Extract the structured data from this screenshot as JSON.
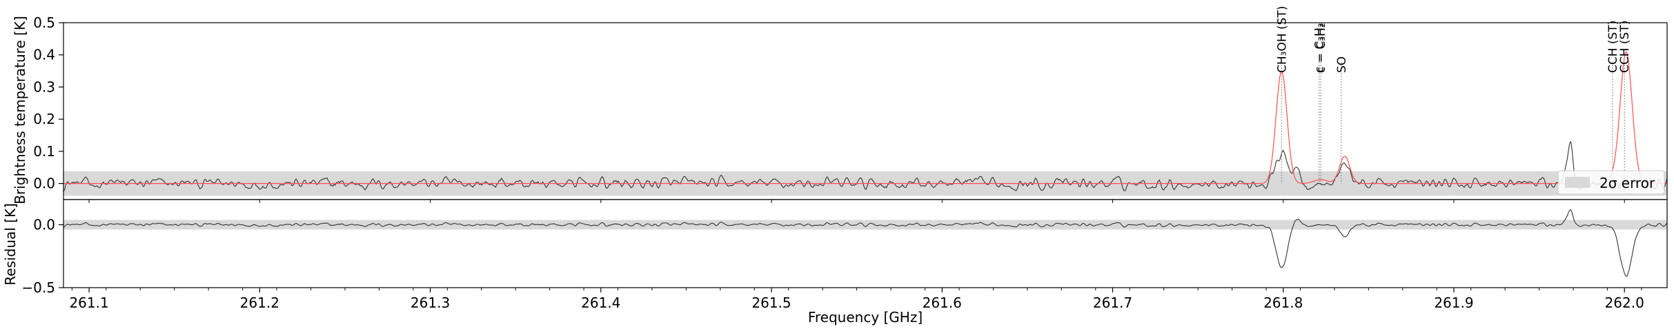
{
  "chart_data": {
    "type": "line",
    "xlabel": "Frequency [GHz]",
    "xlim": [
      261.085,
      262.025
    ],
    "x_ticks": [
      "261.1",
      "261.2",
      "261.3",
      "261.4",
      "261.5",
      "261.6",
      "261.7",
      "261.8",
      "261.9",
      "262.0"
    ],
    "panels": [
      {
        "name": "spectrum",
        "ylabel": "Brightness temperature [K]",
        "ylim": [
          -0.05,
          0.5
        ],
        "y_ticks": [
          "0.0",
          "0.1",
          "0.2",
          "0.3",
          "0.4",
          "0.5"
        ],
        "error_band": [
          -0.038,
          0.038
        ],
        "noise_amplitude": 0.015,
        "series": [
          {
            "role": "observed",
            "color": "#333333",
            "features": [
              {
                "center": 261.799,
                "width": 0.0032,
                "amp": 0.13
              },
              {
                "center": 261.836,
                "width": 0.0028,
                "amp": 0.07
              },
              {
                "center": 261.968,
                "width": 0.0018,
                "amp": 0.13
              },
              {
                "center": 261.808,
                "width": 0.0022,
                "amp": 0.05
              },
              {
                "center": 261.798,
                "width": 0.0015,
                "amp": -0.06
              }
            ]
          },
          {
            "role": "model",
            "color": "#ff4d4d",
            "features": [
              {
                "center": 261.799,
                "width": 0.0032,
                "amp": 0.35
              },
              {
                "center": 261.836,
                "width": 0.003,
                "amp": 0.085
              },
              {
                "center": 261.822,
                "width": 0.004,
                "amp": 0.012
              },
              {
                "center": 262.001,
                "width": 0.0035,
                "amp": 0.41
              },
              {
                "center": 261.993,
                "width": 0.0025,
                "amp": 0.01
              }
            ]
          }
        ]
      },
      {
        "name": "residual",
        "ylabel": "Residual [K]",
        "ylim": [
          -0.5,
          0.2
        ],
        "y_ticks": [
          "−0.5",
          "0.0"
        ],
        "error_band": [
          -0.038,
          0.038
        ],
        "noise_amplitude": 0.012,
        "series": [
          {
            "role": "residual",
            "color": "#333333",
            "features": [
              {
                "center": 261.799,
                "width": 0.0032,
                "amp": -0.35
              },
              {
                "center": 262.001,
                "width": 0.0035,
                "amp": -0.41
              },
              {
                "center": 261.836,
                "width": 0.0028,
                "amp": -0.09
              },
              {
                "center": 261.968,
                "width": 0.0018,
                "amp": 0.12
              },
              {
                "center": 261.808,
                "width": 0.0025,
                "amp": 0.05
              }
            ]
          }
        ]
      }
    ],
    "line_identifications": [
      {
        "freq": 261.799,
        "label": "CH₃OH (ST)"
      },
      {
        "freq": 261.821,
        "label": "c − C₃H₂"
      },
      {
        "freq": 261.822,
        "label": "c − C₃H₂"
      },
      {
        "freq": 261.834,
        "label": "SO"
      },
      {
        "freq": 261.993,
        "label": "CCH (ST)"
      },
      {
        "freq": 262.0,
        "label": "CCH (ST)"
      }
    ],
    "legend": {
      "position": "lower-right",
      "entries": [
        {
          "label": "2σ error",
          "color": "#d9d9d9"
        }
      ]
    }
  }
}
